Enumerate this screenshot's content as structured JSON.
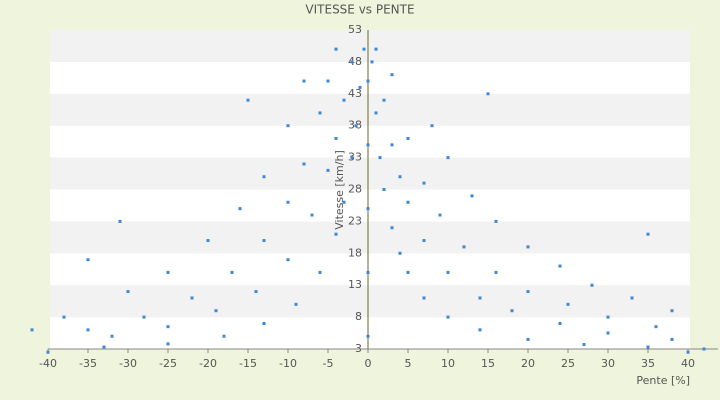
{
  "chart_data": {
    "type": "scatter",
    "title": "VITESSE vs PENTE",
    "x_label": "Pente [%]",
    "y_label": "Vitesse [km/h]",
    "xlim": [
      -40,
      40
    ],
    "ylim": [
      3,
      53
    ],
    "xticks": [
      -40,
      -35,
      -30,
      -25,
      -20,
      -15,
      -10,
      -5,
      0,
      5,
      10,
      15,
      20,
      25,
      30,
      35,
      40
    ],
    "yticks": [
      3,
      8,
      13,
      18,
      23,
      28,
      33,
      38,
      43,
      48,
      53
    ],
    "grid": true,
    "color": "#3d87d6",
    "x": [
      0.5,
      1,
      1.5,
      2,
      3,
      4,
      5,
      7,
      10,
      14,
      20,
      27,
      35,
      1,
      2,
      3,
      4,
      5,
      7,
      10,
      14,
      18,
      24,
      30,
      38,
      3,
      5,
      7,
      9,
      12,
      16,
      20,
      25,
      30,
      36,
      8,
      10,
      13,
      16,
      20,
      24,
      28,
      33,
      38,
      -0.5,
      -1,
      -1.5,
      -2,
      -3,
      -4,
      -6,
      -9,
      -13,
      -18,
      -25,
      -33,
      -2,
      -3,
      -4,
      -5,
      -7,
      -10,
      -14,
      -19,
      -25,
      -32,
      -4,
      -5,
      -6,
      -8,
      -10,
      -13,
      -17,
      -22,
      -28,
      -35,
      -8,
      -10,
      -13,
      -16,
      -20,
      -25,
      -30,
      -38,
      0,
      0,
      0,
      0,
      0,
      -42,
      -40,
      40,
      42,
      -15,
      15,
      35,
      -31,
      -35
    ],
    "values": [
      48,
      40,
      33,
      28,
      22,
      18,
      15,
      11,
      8,
      6,
      4.5,
      3.7,
      3.3,
      50,
      42,
      35,
      30,
      26,
      20,
      15,
      11,
      9,
      7,
      5.5,
      4.5,
      46,
      36,
      29,
      24,
      19,
      15,
      12,
      10,
      8,
      6.5,
      38,
      33,
      27,
      23,
      19,
      16,
      13,
      11,
      9,
      50,
      44,
      38,
      33,
      26,
      21,
      15,
      10,
      7,
      5,
      3.8,
      3.3,
      48,
      42,
      36,
      31,
      24,
      17,
      12,
      9,
      6.5,
      5,
      50,
      45,
      40,
      32,
      26,
      20,
      15,
      11,
      8,
      6,
      45,
      38,
      30,
      25,
      20,
      15,
      12,
      8,
      5,
      15,
      25,
      35,
      45,
      6,
      2.5,
      2.5,
      3,
      42,
      43,
      21,
      23,
      17
    ]
  }
}
